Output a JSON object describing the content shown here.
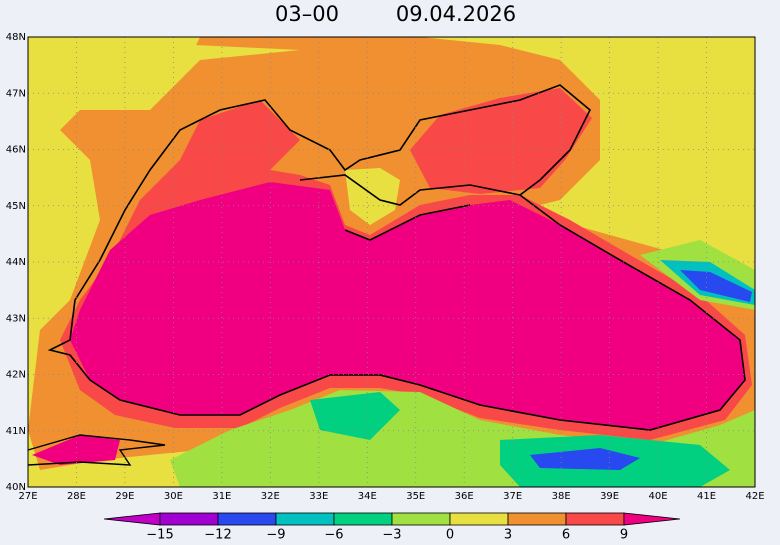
{
  "header": {
    "time": "03–00",
    "date": "09.04.2026"
  },
  "map": {
    "lon_ticks": [
      {
        "value": 27,
        "label": "27E"
      },
      {
        "value": 28,
        "label": "28E"
      },
      {
        "value": 29,
        "label": "29E"
      },
      {
        "value": 30,
        "label": "30E"
      },
      {
        "value": 31,
        "label": "31E"
      },
      {
        "value": 32,
        "label": "32E"
      },
      {
        "value": 33,
        "label": "33E"
      },
      {
        "value": 34,
        "label": "34E"
      },
      {
        "value": 35,
        "label": "35E"
      },
      {
        "value": 36,
        "label": "36E"
      },
      {
        "value": 37,
        "label": "37E"
      },
      {
        "value": 38,
        "label": "38E"
      },
      {
        "value": 39,
        "label": "39E"
      },
      {
        "value": 40,
        "label": "40E"
      },
      {
        "value": 41,
        "label": "41E"
      },
      {
        "value": 42,
        "label": "42E"
      }
    ],
    "lat_ticks": [
      {
        "value": 40,
        "label": "40N"
      },
      {
        "value": 41,
        "label": "41N"
      },
      {
        "value": 42,
        "label": "42N"
      },
      {
        "value": 43,
        "label": "43N"
      },
      {
        "value": 44,
        "label": "44N"
      },
      {
        "value": 45,
        "label": "45N"
      },
      {
        "value": 46,
        "label": "46N"
      },
      {
        "value": 47,
        "label": "47N"
      },
      {
        "value": 48,
        "label": "48N"
      }
    ]
  },
  "colorbar": {
    "ticks": [
      {
        "value": -15,
        "label": "−15"
      },
      {
        "value": -12,
        "label": "−12"
      },
      {
        "value": -9,
        "label": "−9"
      },
      {
        "value": -6,
        "label": "−6"
      },
      {
        "value": -3,
        "label": "−3"
      },
      0,
      3,
      6,
      9
    ],
    "colors": [
      "#c000c8",
      "#a000d0",
      "#2848f0",
      "#00c0c0",
      "#00d080",
      "#a0e040",
      "#e8e040",
      "#f09030",
      "#f84848",
      "#f00080"
    ]
  }
}
